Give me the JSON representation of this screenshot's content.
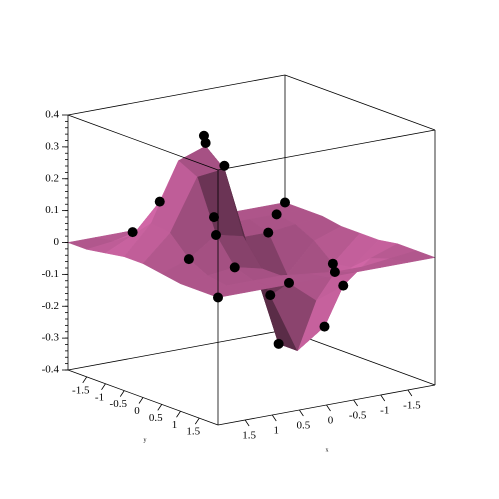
{
  "chart_data": {
    "type": "surface",
    "xlabel": "x",
    "ylabel": "y",
    "x": [
      -2,
      -1.5,
      -1,
      -0.5,
      0,
      0.5,
      1,
      1.5,
      2
    ],
    "y": [
      -2,
      -1.5,
      -1,
      -0.5,
      0,
      0.5,
      1,
      1.5,
      2
    ],
    "z": [
      [
        0,
        0,
        0,
        0,
        0,
        0,
        0,
        0,
        0
      ],
      [
        0,
        0,
        0,
        0,
        0.02,
        0.03,
        0.03,
        0.01,
        0
      ],
      [
        0,
        -0.01,
        -0.02,
        -0.02,
        0.06,
        0.16,
        0.14,
        0.05,
        0.01
      ],
      [
        -0.01,
        -0.04,
        -0.13,
        -0.13,
        0.09,
        0.32,
        0.29,
        0.11,
        0.02
      ],
      [
        -0.01,
        -0.09,
        -0.27,
        -0.31,
        -0.03,
        0.27,
        0.26,
        0.1,
        0.02
      ],
      [
        -0.01,
        -0.08,
        -0.25,
        -0.31,
        -0.12,
        0.08,
        0.1,
        0.04,
        0.01
      ],
      [
        0,
        -0.03,
        -0.1,
        -0.13,
        -0.06,
        0,
        0.02,
        0.01,
        0
      ],
      [
        0,
        -0.01,
        -0.02,
        -0.02,
        -0.01,
        0,
        0,
        0,
        0
      ],
      [
        0,
        0,
        0,
        0,
        0,
        0,
        0,
        0,
        0
      ]
    ],
    "points": [
      {
        "x": 0.5,
        "y": -0.5,
        "z": 0.33
      },
      {
        "x": 0.6,
        "y": -0.4,
        "z": 0.36
      },
      {
        "x": 0.5,
        "y": 0,
        "z": 0.28
      },
      {
        "x": 1,
        "y": -1,
        "z": 0.14
      },
      {
        "x": 1.5,
        "y": -1,
        "z": 0.06
      },
      {
        "x": 0,
        "y": -1,
        "z": 0.06
      },
      {
        "x": -1,
        "y": -1,
        "z": -0.02
      },
      {
        "x": -1.5,
        "y": -1.5,
        "z": 0
      },
      {
        "x": -2,
        "y": -2,
        "z": 0
      },
      {
        "x": 2,
        "y": 2,
        "z": 0
      },
      {
        "x": 1,
        "y": 1,
        "z": 0.02
      },
      {
        "x": 0,
        "y": 0.5,
        "z": -0.12
      },
      {
        "x": -0.5,
        "y": 0,
        "z": -0.31
      },
      {
        "x": -1,
        "y": 0.5,
        "z": -0.25
      },
      {
        "x": -1,
        "y": 1,
        "z": -0.1
      },
      {
        "x": -1.5,
        "y": 0,
        "z": -0.09
      },
      {
        "x": 1,
        "y": 0.5,
        "z": 0.1
      },
      {
        "x": 1.5,
        "y": 0.5,
        "z": 0.04
      },
      {
        "x": 0,
        "y": 1,
        "z": -0.06
      },
      {
        "x": -0.5,
        "y": 1.5,
        "z": -0.02
      }
    ],
    "point_color": "#000000",
    "surface_color": "#c8629f",
    "xlim": [
      -2,
      2
    ],
    "ylim": [
      -2,
      2
    ],
    "zlim": [
      -0.4,
      0.4
    ],
    "xticks": [
      -1.5,
      -1,
      -0.5,
      0,
      0.5,
      1,
      1.5
    ],
    "yticks": [
      -1.5,
      -1,
      -0.5,
      0,
      0.5,
      1,
      1.5
    ],
    "zticks": [
      -0.4,
      -0.3,
      -0.2,
      -0.1,
      0,
      0.1,
      0.2,
      0.3,
      0.4
    ]
  }
}
